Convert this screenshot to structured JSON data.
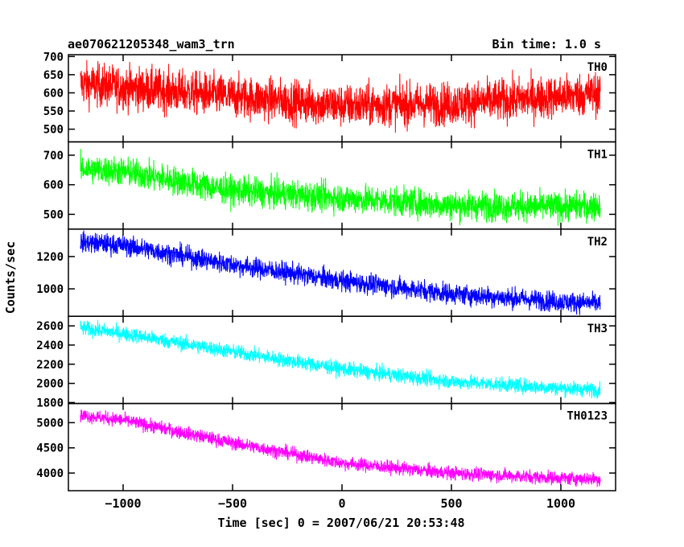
{
  "chart_data": {
    "type": "line",
    "title": "ae070621205348_wam3_trn",
    "subtitle": "Bin time: 1.0 s",
    "xlabel": "Time [sec] 0 = 2007/06/21 20:53:48",
    "ylabel": "Counts/sec",
    "xlim": [
      -1250,
      1250
    ],
    "x_range_data": [
      -1195,
      1180
    ],
    "x_ticks": [
      -1000,
      -500,
      0,
      500,
      1000
    ],
    "x_tick_labels": [
      "−1000",
      "−500",
      "0",
      "500",
      "1000"
    ],
    "grid": false,
    "panels": [
      {
        "name": "TH0",
        "color": "#ff0000",
        "ylim": [
          465,
          705
        ],
        "y_ticks": [
          500,
          550,
          600,
          650,
          700
        ],
        "y_tick_labels": [
          "500",
          "550",
          "600",
          "650",
          "700"
        ],
        "trend_x": [
          -1195,
          -1000,
          -500,
          0,
          500,
          1000,
          1180
        ],
        "trend_y": [
          625,
          615,
          590,
          565,
          570,
          590,
          600
        ],
        "noise": 42
      },
      {
        "name": "TH1",
        "color": "#00ff00",
        "ylim": [
          450,
          745
        ],
        "y_ticks": [
          500,
          600,
          700
        ],
        "y_tick_labels": [
          "500",
          "600",
          "700"
        ],
        "trend_x": [
          -1195,
          -1000,
          -500,
          0,
          500,
          1000,
          1180
        ],
        "trend_y": [
          655,
          645,
          580,
          555,
          530,
          525,
          530
        ],
        "noise": 35
      },
      {
        "name": "TH2",
        "color": "#0000ff",
        "ylim": [
          830,
          1370
        ],
        "y_ticks": [
          1000,
          1200
        ],
        "y_tick_labels": [
          "1000",
          "1200"
        ],
        "trend_x": [
          -1195,
          -1000,
          -500,
          0,
          500,
          1000,
          1180
        ],
        "trend_y": [
          1290,
          1270,
          1150,
          1050,
          970,
          920,
          910
        ],
        "noise": 45
      },
      {
        "name": "TH3",
        "color": "#00ffff",
        "ylim": [
          1790,
          2700
        ],
        "y_ticks": [
          1800,
          2000,
          2200,
          2400,
          2600
        ],
        "y_tick_labels": [
          "1800",
          "2000",
          "2200",
          "2400",
          "2600"
        ],
        "trend_x": [
          -1195,
          -1000,
          -500,
          0,
          500,
          1000,
          1180
        ],
        "trend_y": [
          2580,
          2520,
          2330,
          2150,
          2020,
          1950,
          1930
        ],
        "noise": 55
      },
      {
        "name": "TH0123",
        "color": "#ff00ff",
        "ylim": [
          3650,
          5380
        ],
        "y_ticks": [
          4000,
          4500,
          5000
        ],
        "y_tick_labels": [
          "4000",
          "4500",
          "5000"
        ],
        "trend_x": [
          -1195,
          -1000,
          -500,
          0,
          500,
          1000,
          1180
        ],
        "trend_y": [
          5150,
          5050,
          4600,
          4200,
          4000,
          3900,
          3880
        ],
        "noise": 95
      }
    ]
  }
}
